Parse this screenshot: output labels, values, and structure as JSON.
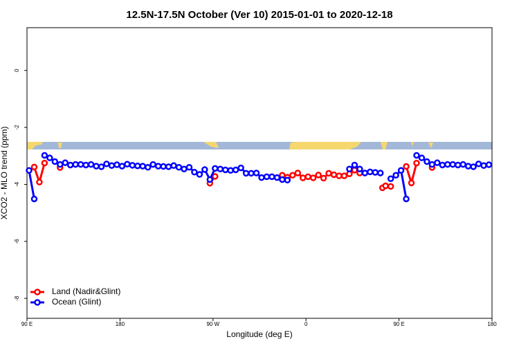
{
  "chart_data": {
    "type": "line",
    "title": "12.5N-17.5N October (Ver 10)   2015-01-01 to 2020-12-18",
    "xlabel": "Longitude (deg E)",
    "ylabel": "XCO2 - MLO trend (ppm)",
    "xlim": [
      90,
      540
    ],
    "ylim": [
      -8.7,
      1.5
    ],
    "xticks": [
      {
        "value": 90,
        "label": "90 E"
      },
      180,
      {
        "value": 270,
        "label": "90 W"
      },
      {
        "value": 360,
        "label": "0"
      },
      {
        "value": 450,
        "label": "90 E"
      },
      {
        "value": 540,
        "label": "180"
      }
    ],
    "yticks": [
      0,
      -2,
      -4,
      -6,
      -8
    ],
    "legend": "bottom-left",
    "series": [
      {
        "name": "Land (Nadir&Glint)",
        "color": "#ff0000",
        "x": [
          97,
          102,
          107,
          112,
          122,
          127,
          267,
          272,
          277,
          337,
          342,
          347,
          352,
          357,
          362,
          367,
          372,
          377,
          382,
          387,
          392,
          397,
          402,
          407,
          412,
          417,
          434,
          437,
          442,
          447,
          457,
          462,
          467,
          472,
          482
        ],
        "values": [
          -3.39,
          -3.92,
          -3.25,
          null,
          -3.41,
          null,
          -3.96,
          -3.72,
          null,
          -3.68,
          -3.75,
          -3.68,
          -3.6,
          -3.77,
          -3.73,
          -3.77,
          -3.67,
          -3.78,
          -3.61,
          -3.66,
          -3.7,
          -3.7,
          -3.63,
          -3.5,
          -3.6,
          null,
          -4.12,
          -4.05,
          -4.07,
          null,
          -3.37,
          -3.95,
          -3.25,
          null,
          -3.41
        ]
      },
      {
        "name": "Ocean (Glint)",
        "color": "#0000ff",
        "x": [
          92,
          97,
          102,
          107,
          112,
          117,
          122,
          127,
          132,
          137,
          142,
          147,
          152,
          157,
          162,
          167,
          172,
          177,
          182,
          187,
          192,
          197,
          202,
          207,
          212,
          217,
          222,
          227,
          232,
          237,
          242,
          247,
          252,
          257,
          262,
          267,
          272,
          277,
          282,
          287,
          292,
          297,
          302,
          307,
          312,
          317,
          322,
          327,
          332,
          337,
          342,
          347,
          352,
          357,
          362,
          367,
          372,
          377,
          382,
          387,
          392,
          397,
          402,
          407,
          412,
          417,
          422,
          427,
          432,
          437,
          442,
          447,
          452,
          457,
          462,
          467,
          472,
          477,
          482,
          487,
          492,
          497,
          502,
          507,
          512,
          517,
          522,
          527,
          532,
          537
        ],
        "values": [
          -3.51,
          -4.51,
          null,
          -2.98,
          -3.07,
          -3.2,
          -3.3,
          -3.24,
          -3.32,
          -3.3,
          -3.3,
          -3.32,
          -3.3,
          -3.36,
          -3.38,
          -3.28,
          -3.34,
          -3.31,
          -3.36,
          -3.29,
          -3.33,
          -3.35,
          -3.36,
          -3.4,
          -3.3,
          -3.36,
          -3.37,
          -3.38,
          -3.34,
          -3.4,
          -3.46,
          -3.4,
          -3.57,
          -3.65,
          -3.48,
          -3.83,
          -3.44,
          -3.46,
          -3.49,
          -3.51,
          -3.49,
          -3.42,
          -3.61,
          -3.61,
          -3.6,
          -3.76,
          -3.73,
          -3.73,
          -3.76,
          -3.83,
          -3.85,
          null,
          null,
          null,
          null,
          null,
          null,
          null,
          null,
          null,
          null,
          null,
          -3.46,
          -3.32,
          -3.46,
          -3.6,
          -3.56,
          -3.58,
          -3.6,
          null,
          -3.8,
          -3.68,
          -3.51,
          -4.51,
          null,
          -2.98,
          -3.07,
          -3.2,
          -3.3,
          -3.24,
          -3.32,
          -3.3,
          -3.3,
          -3.32,
          -3.3,
          -3.36,
          -3.38,
          -3.28,
          -3.34,
          -3.31
        ]
      }
    ]
  }
}
